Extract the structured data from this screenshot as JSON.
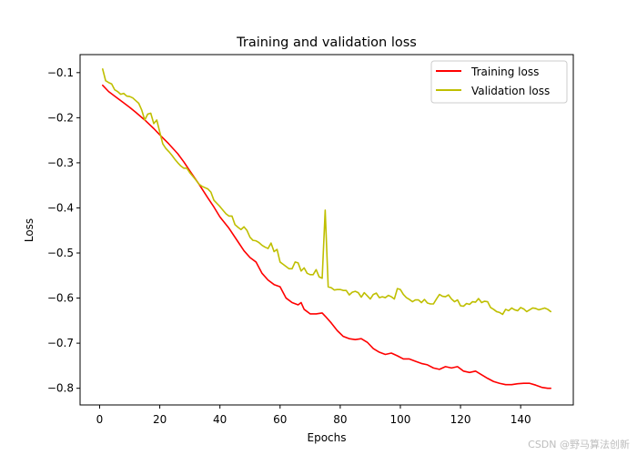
{
  "colors": {
    "training": "#ff0000",
    "validation": "#bfbf00",
    "axes": "#000000",
    "background": "#ffffff"
  },
  "watermark": "CSDN @野马算法创新",
  "chart_data": {
    "type": "line",
    "title": "Training and validation loss",
    "xlabel": "Epochs",
    "ylabel": "Loss",
    "xlim": [
      -6.5,
      157.5
    ],
    "ylim": [
      -0.837,
      -0.06
    ],
    "xticks": [
      0,
      20,
      40,
      60,
      80,
      100,
      120,
      140
    ],
    "xtick_labels": [
      "0",
      "20",
      "40",
      "60",
      "80",
      "100",
      "120",
      "140"
    ],
    "yticks": [
      -0.1,
      -0.2,
      -0.3,
      -0.4,
      -0.5,
      -0.6,
      -0.7,
      -0.8
    ],
    "ytick_labels": [
      "−0.1",
      "−0.2",
      "−0.3",
      "−0.4",
      "−0.5",
      "−0.6",
      "−0.7",
      "−0.8"
    ],
    "grid": false,
    "legend": "top-right",
    "series": [
      {
        "name": "Training loss",
        "color": "#ff0000",
        "x": [
          1,
          3,
          5,
          8,
          10,
          12,
          15,
          18,
          20,
          23,
          26,
          28,
          30,
          33,
          36,
          38,
          40,
          43,
          46,
          48,
          50,
          52,
          54,
          56,
          58,
          60,
          62,
          64,
          66,
          67,
          68,
          70,
          72,
          74,
          75,
          77,
          79,
          81,
          83,
          85,
          87,
          89,
          91,
          93,
          95,
          97,
          99,
          101,
          103,
          105,
          107,
          109,
          111,
          113,
          115,
          117,
          119,
          121,
          123,
          125,
          127,
          129,
          131,
          133,
          135,
          137,
          139,
          141,
          143,
          145,
          147,
          149,
          150
        ],
        "y": [
          -0.128,
          -0.142,
          -0.152,
          -0.167,
          -0.177,
          -0.188,
          -0.205,
          -0.224,
          -0.238,
          -0.258,
          -0.28,
          -0.298,
          -0.318,
          -0.347,
          -0.378,
          -0.398,
          -0.42,
          -0.445,
          -0.475,
          -0.495,
          -0.51,
          -0.52,
          -0.545,
          -0.56,
          -0.57,
          -0.575,
          -0.6,
          -0.61,
          -0.615,
          -0.61,
          -0.625,
          -0.635,
          -0.635,
          -0.633,
          -0.64,
          -0.655,
          -0.672,
          -0.685,
          -0.69,
          -0.692,
          -0.69,
          -0.698,
          -0.712,
          -0.72,
          -0.725,
          -0.722,
          -0.728,
          -0.735,
          -0.735,
          -0.74,
          -0.745,
          -0.748,
          -0.755,
          -0.758,
          -0.752,
          -0.755,
          -0.752,
          -0.762,
          -0.765,
          -0.762,
          -0.77,
          -0.778,
          -0.785,
          -0.789,
          -0.792,
          -0.792,
          -0.79,
          -0.789,
          -0.789,
          -0.793,
          -0.798,
          -0.8,
          -0.8
        ]
      },
      {
        "name": "Validation loss",
        "color": "#bfbf00",
        "x": [
          1,
          2,
          3,
          4,
          5,
          6,
          7,
          8,
          9,
          10,
          11,
          12,
          13,
          14,
          15,
          16,
          17,
          18,
          19,
          20,
          21,
          22,
          23,
          24,
          25,
          26,
          27,
          28,
          29,
          30,
          31,
          32,
          33,
          34,
          35,
          36,
          37,
          38,
          39,
          40,
          41,
          42,
          43,
          44,
          45,
          46,
          47,
          48,
          49,
          50,
          51,
          52,
          53,
          54,
          55,
          56,
          57,
          58,
          59,
          60,
          61,
          62,
          63,
          64,
          65,
          66,
          67,
          68,
          69,
          70,
          71,
          72,
          73,
          74,
          75,
          76,
          77,
          78,
          79,
          80,
          81,
          82,
          83,
          84,
          85,
          86,
          87,
          88,
          89,
          90,
          91,
          92,
          93,
          94,
          95,
          96,
          97,
          98,
          99,
          100,
          101,
          102,
          103,
          104,
          105,
          106,
          107,
          108,
          109,
          110,
          111,
          112,
          113,
          114,
          115,
          116,
          117,
          118,
          119,
          120,
          121,
          122,
          123,
          124,
          125,
          126,
          127,
          128,
          129,
          130,
          131,
          132,
          133,
          134,
          135,
          136,
          137,
          138,
          139,
          140,
          141,
          142,
          143,
          144,
          145,
          146,
          147,
          148,
          149,
          150
        ],
        "y": [
          -0.092,
          -0.118,
          -0.122,
          -0.125,
          -0.138,
          -0.142,
          -0.148,
          -0.146,
          -0.152,
          -0.153,
          -0.156,
          -0.162,
          -0.168,
          -0.183,
          -0.205,
          -0.192,
          -0.19,
          -0.213,
          -0.205,
          -0.232,
          -0.258,
          -0.268,
          -0.275,
          -0.283,
          -0.292,
          -0.3,
          -0.307,
          -0.312,
          -0.312,
          -0.322,
          -0.33,
          -0.338,
          -0.347,
          -0.352,
          -0.355,
          -0.358,
          -0.365,
          -0.383,
          -0.39,
          -0.397,
          -0.405,
          -0.413,
          -0.418,
          -0.418,
          -0.437,
          -0.443,
          -0.448,
          -0.442,
          -0.45,
          -0.465,
          -0.472,
          -0.473,
          -0.477,
          -0.483,
          -0.487,
          -0.49,
          -0.478,
          -0.497,
          -0.492,
          -0.52,
          -0.525,
          -0.53,
          -0.535,
          -0.535,
          -0.52,
          -0.522,
          -0.54,
          -0.533,
          -0.545,
          -0.548,
          -0.548,
          -0.537,
          -0.553,
          -0.556,
          -0.405,
          -0.575,
          -0.577,
          -0.582,
          -0.581,
          -0.581,
          -0.583,
          -0.583,
          -0.593,
          -0.587,
          -0.585,
          -0.588,
          -0.598,
          -0.588,
          -0.595,
          -0.602,
          -0.592,
          -0.589,
          -0.599,
          -0.597,
          -0.599,
          -0.594,
          -0.597,
          -0.602,
          -0.579,
          -0.581,
          -0.592,
          -0.599,
          -0.603,
          -0.608,
          -0.604,
          -0.604,
          -0.61,
          -0.603,
          -0.611,
          -0.613,
          -0.613,
          -0.602,
          -0.592,
          -0.596,
          -0.597,
          -0.593,
          -0.602,
          -0.608,
          -0.604,
          -0.617,
          -0.618,
          -0.612,
          -0.614,
          -0.608,
          -0.609,
          -0.601,
          -0.61,
          -0.607,
          -0.608,
          -0.621,
          -0.625,
          -0.63,
          -0.632,
          -0.636,
          -0.625,
          -0.628,
          -0.622,
          -0.626,
          -0.628,
          -0.621,
          -0.624,
          -0.63,
          -0.626,
          -0.622,
          -0.623,
          -0.626,
          -0.624,
          -0.622,
          -0.625,
          -0.63
        ]
      }
    ]
  }
}
